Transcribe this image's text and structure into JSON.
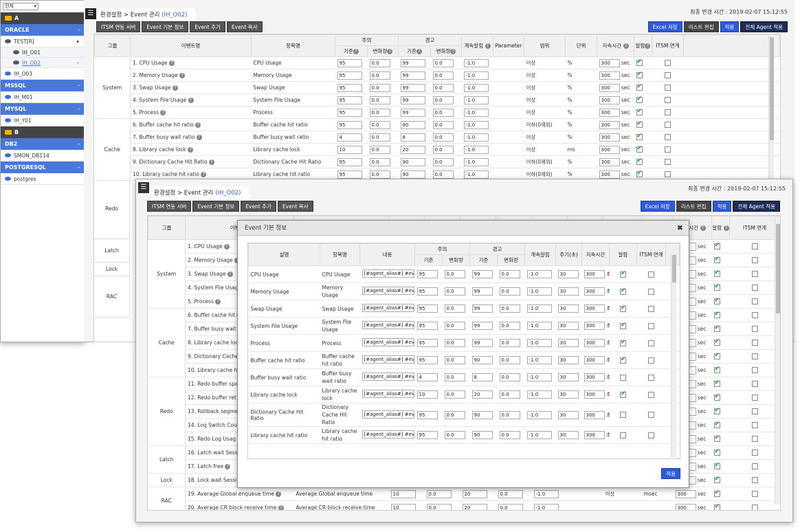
{
  "sidebar": {
    "filter": "전체",
    "sections": [
      {
        "kind": "folder",
        "label": "A"
      },
      {
        "kind": "db",
        "label": "ORACLE"
      },
      {
        "kind": "server",
        "label": "TEST[R]"
      },
      {
        "kind": "sub",
        "label": "IH_O01"
      },
      {
        "kind": "subsel",
        "label": "IH_O02"
      },
      {
        "kind": "item",
        "label": "IH_O03"
      },
      {
        "kind": "db",
        "label": "MSSQL"
      },
      {
        "kind": "item",
        "label": "IH_M01"
      },
      {
        "kind": "db",
        "label": "MYSQL"
      },
      {
        "kind": "item",
        "label": "IH_Y01"
      },
      {
        "kind": "folder",
        "label": "B"
      },
      {
        "kind": "db",
        "label": "DB2"
      },
      {
        "kind": "item",
        "label": "SMON_DB114"
      },
      {
        "kind": "db",
        "label": "POSTGRESQL"
      },
      {
        "kind": "item",
        "label": "postgres"
      }
    ]
  },
  "win1": {
    "breadcrumb": "환경설정 > Event 관리",
    "code": "(IH_O02)",
    "stamp": "최종 변경 시간 : 2019-02-07 15:12:55",
    "left_buttons": [
      "ITSM 연동 서버",
      "Event 기본 정보",
      "Event 추가",
      "Event 복사"
    ],
    "right_buttons": [
      "Excel 저장",
      "리스트 편집",
      "적용",
      "전체 Agent 적용"
    ],
    "headers": {
      "group": "그룹",
      "event": "이벤트명",
      "item": "항목명",
      "warn": "주의",
      "crit": "경고",
      "base": "기준",
      "delta": "변화량",
      "cont": "계속알림",
      "param": "Parameter",
      "range": "범위",
      "unit": "단위",
      "dur": "지속시간",
      "alarm": "알람",
      "itsm": "ITSM 연계"
    },
    "rows": [
      {
        "group": "System",
        "event": "1. CPU Usage",
        "item": "CPU Usage",
        "w": "95",
        "wd": "0.0",
        "c": "99",
        "cd": "0.0",
        "cont": "-1.0",
        "range": "이상",
        "unit": "%",
        "dur": "300",
        "sec": "sec",
        "alarm": true
      },
      {
        "group": "",
        "event": "2. Memory Usage",
        "item": "Memory Usage",
        "w": "95",
        "wd": "0.0",
        "c": "99",
        "cd": "0.0",
        "cont": "-1.0",
        "range": "이상",
        "unit": "%",
        "dur": "300",
        "sec": "sec",
        "alarm": true
      },
      {
        "group": "",
        "event": "3. Swap Usage",
        "item": "Swap Usage",
        "w": "95",
        "wd": "0.0",
        "c": "99",
        "cd": "0.0",
        "cont": "-1.0",
        "range": "이상",
        "unit": "%",
        "dur": "300",
        "sec": "sec",
        "alarm": true
      },
      {
        "group": "",
        "event": "4. System File Usage",
        "item": "System File Usage",
        "w": "95",
        "wd": "0.0",
        "c": "99",
        "cd": "0.0",
        "cont": "-1.0",
        "range": "이상",
        "unit": "%",
        "dur": "300",
        "sec": "sec",
        "alarm": true
      },
      {
        "group": "",
        "event": "5. Process",
        "item": "Process",
        "w": "95",
        "wd": "0.0",
        "c": "99",
        "cd": "0.0",
        "cont": "-1.0",
        "range": "이상",
        "unit": "%",
        "dur": "300",
        "sec": "sec",
        "alarm": true
      },
      {
        "group": "Cache",
        "event": "6. Buffer cache hit ratio",
        "item": "Buffer cache hit ratio",
        "w": "95",
        "wd": "0.0",
        "c": "90",
        "cd": "0.0",
        "cont": "-1.0",
        "range": "이하(0제외)",
        "unit": "%",
        "dur": "300",
        "sec": "sec",
        "alarm": true
      },
      {
        "group": "",
        "event": "7. Buffer busy wait ratio",
        "item": "Buffer busy wait ratio",
        "w": "4",
        "wd": "0.0",
        "c": "8",
        "cd": "0.0",
        "cont": "-1.0",
        "range": "이상",
        "unit": "%",
        "dur": "300",
        "sec": "sec",
        "alarm": true
      },
      {
        "group": "",
        "event": "8. Library cache lock",
        "item": "Library cache lock",
        "w": "10",
        "wd": "0.0",
        "c": "20",
        "cd": "0.0",
        "cont": "-1.0",
        "range": "이상",
        "unit": "ms",
        "dur": "300",
        "sec": "sec",
        "alarm": true
      },
      {
        "group": "",
        "event": "9. Dictionary Cache Hit Ratio",
        "item": "Dictionary Cache Hit Ratio",
        "w": "95",
        "wd": "0.0",
        "c": "90",
        "cd": "0.0",
        "cont": "-1.0",
        "range": "이하(0제외)",
        "unit": "%",
        "dur": "300",
        "sec": "sec",
        "alarm": true
      },
      {
        "group": "",
        "event": "10. Library cache hit ratio",
        "item": "Library cache hit ratio",
        "w": "95",
        "wd": "0.0",
        "c": "90",
        "cd": "0.0",
        "cont": "-1.0",
        "range": "이하(0제외)",
        "unit": "%",
        "dur": "300",
        "sec": "sec",
        "alarm": true
      }
    ],
    "below_groups": [
      "Redo",
      "Latch",
      "Lock",
      "RAC"
    ]
  },
  "win2": {
    "breadcrumb": "환경설정 > Event 관리",
    "code": "(IH_O02)",
    "stamp": "최종 변경 시간 : 2019-02-07 15:12:55",
    "left_buttons": [
      "ITSM 연동 서버",
      "Event 기본 정보",
      "Event 추가",
      "Event 복사"
    ],
    "right_buttons": [
      "Excel 저장",
      "리스트 편집",
      "적용",
      "전체 Agent 적용"
    ],
    "group_header": "그룹",
    "event_header": "이벤트명",
    "dur_header": "지속시간",
    "alarm_header": "알람",
    "itsm_header": "ITSM 연계",
    "rows": [
      {
        "group": "System",
        "event": "1. CPU Usage",
        "alarm": true
      },
      {
        "group": "",
        "event": "2. Memory Usage",
        "alarm": true
      },
      {
        "group": "",
        "event": "3. Swap Usage",
        "alarm": true
      },
      {
        "group": "",
        "event": "4. System File Usage",
        "alarm": true
      },
      {
        "group": "",
        "event": "5. Process",
        "alarm": true
      },
      {
        "group": "Cache",
        "event": "6. Buffer cache hit",
        "alarm": true
      },
      {
        "group": "",
        "event": "7. Buffer busy wait",
        "alarm": true
      },
      {
        "group": "",
        "event": "8. Library cache loc",
        "alarm": true
      },
      {
        "group": "",
        "event": "9. Dictionary Cache",
        "alarm": true
      },
      {
        "group": "",
        "event": "10. Library cache hi",
        "alarm": true
      },
      {
        "group": "Redo",
        "event": "11. Redo buffer spa",
        "alarm": true
      },
      {
        "group": "",
        "event": "12. Redo buffer ret",
        "alarm": true
      },
      {
        "group": "",
        "event": "13. Rollback segme",
        "alarm": true
      },
      {
        "group": "",
        "event": "14. Log Switch Cou",
        "alarm": true
      },
      {
        "group": "",
        "event": "15. Redo Log Usag",
        "alarm": true
      },
      {
        "group": "Latch",
        "event": "16. Latch wait Sess",
        "alarm": true
      },
      {
        "group": "",
        "event": "17. Latch free",
        "alarm": true
      },
      {
        "group": "Lock",
        "event": "18. Lock wait Sessi",
        "alarm": true
      },
      {
        "group": "RAC",
        "event": "19. Average Global enqueue time",
        "item": "Average Global enqueue time",
        "w": "10",
        "wd": "0.0",
        "c": "20",
        "cd": "0.0",
        "cont": "-1.0",
        "range": "이상",
        "unit": "msec",
        "alarm": true
      },
      {
        "group": "",
        "event": "20. Average CR block receive time",
        "item": "Average CR block receive time",
        "w": "10",
        "wd": "0.0",
        "c": "20",
        "cd": "0.0",
        "cont": "-1.0",
        "alarm": true
      }
    ],
    "dur": "300",
    "sec": "sec"
  },
  "modal": {
    "title": "Event 기본 정보",
    "apply": "적용",
    "headers": {
      "desc": "설명",
      "item": "항목명",
      "content": "내용",
      "warn": "주의",
      "crit": "경고",
      "base": "기준",
      "delta": "변화량",
      "cont": "계속알림",
      "period": "주기(초)",
      "dur": "지속시간",
      "alarm": "알람",
      "itsm": "ITSM 연계"
    },
    "rows": [
      {
        "desc": "CPU Usage",
        "item": "CPU Usage",
        "content": "[#agent_alias#] #eve",
        "w": "95",
        "wd": "0.0",
        "c": "99",
        "cd": "0.0",
        "cont": "-1.0",
        "period": "30",
        "dur": "300",
        "ch": "초",
        "alarm": true
      },
      {
        "desc": "Memory Usage",
        "item": "Memory Usage",
        "content": "[#agent_alias#] #eve",
        "w": "95",
        "wd": "0.0",
        "c": "99",
        "cd": "0.0",
        "cont": "-1.0",
        "period": "30",
        "dur": "300",
        "ch": "초",
        "alarm": true
      },
      {
        "desc": "Swap Usage",
        "item": "Swap Usage",
        "content": "[#agent_alias#] #eve",
        "w": "95",
        "wd": "0.0",
        "c": "99",
        "cd": "0.0",
        "cont": "-1.0",
        "period": "30",
        "dur": "300",
        "ch": "초",
        "alarm": true
      },
      {
        "desc": "System File Usage",
        "item": "System File Usage",
        "content": "[#agent_alias#] #eve",
        "w": "95",
        "wd": "0.0",
        "c": "99",
        "cd": "0.0",
        "cont": "-1.0",
        "period": "30",
        "dur": "300",
        "ch": "초",
        "alarm": true
      },
      {
        "desc": "Process",
        "item": "Process",
        "content": "[#agent_alias#] #eve",
        "w": "95",
        "wd": "0.0",
        "c": "99",
        "cd": "0.0",
        "cont": "-1.0",
        "period": "30",
        "dur": "300",
        "ch": "초",
        "alarm": true
      },
      {
        "desc": "Buffer cache hit ratio",
        "item": "Buffer cache hit ratio",
        "content": "[#agent_alias#] #eve",
        "w": "95",
        "wd": "0.0",
        "c": "90",
        "cd": "0.0",
        "cont": "-1.0",
        "period": "30",
        "dur": "300",
        "ch": "초",
        "alarm": true
      },
      {
        "desc": "Buffer busy wait ratio",
        "item": "Buffer busy wait ratio",
        "content": "[#agent_alias#] #eve",
        "w": "4",
        "wd": "0.0",
        "c": "8",
        "cd": "0.0",
        "cont": "-1.0",
        "period": "30",
        "dur": "300",
        "ch": "초",
        "alarm": false
      },
      {
        "desc": "Library cache lock",
        "item": "Library cache lock",
        "content": "[#agent_alias#] #eve",
        "w": "10",
        "wd": "0.0",
        "c": "20",
        "cd": "0.0",
        "cont": "-1.0",
        "period": "30",
        "dur": "300",
        "ch": "초",
        "alarm": true
      },
      {
        "desc": "Dictionary Cache Hit Ratio",
        "item": "Dictionary Cache Hit Ratio",
        "content": "[#agent_alias#] #eve",
        "w": "95",
        "wd": "0.0",
        "c": "90",
        "cd": "0.0",
        "cont": "-1.0",
        "period": "30",
        "dur": "300",
        "ch": "초",
        "alarm": false
      },
      {
        "desc": "Library cache hit ratio",
        "item": "Library cache hit ratio",
        "content": "[#agent_alias#] #eve",
        "w": "95",
        "wd": "0.0",
        "c": "90",
        "cd": "0.0",
        "cont": "-1.0",
        "period": "30",
        "dur": "300",
        "ch": "초",
        "alarm": false
      }
    ]
  }
}
